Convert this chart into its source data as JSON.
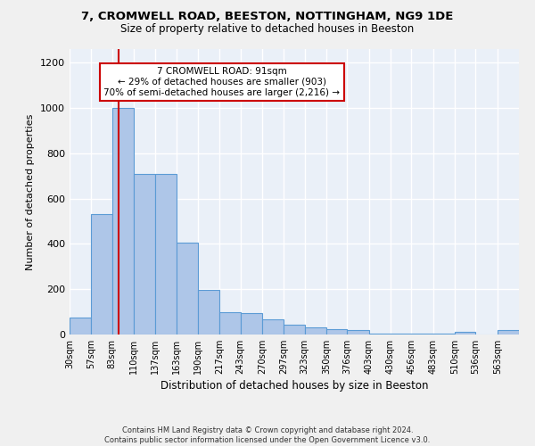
{
  "title_line1": "7, CROMWELL ROAD, BEESTON, NOTTINGHAM, NG9 1DE",
  "title_line2": "Size of property relative to detached houses in Beeston",
  "xlabel": "Distribution of detached houses by size in Beeston",
  "ylabel": "Number of detached properties",
  "bar_color": "#aec6e8",
  "bar_edge_color": "#5b9bd5",
  "background_color": "#eaf0f8",
  "grid_color": "#ffffff",
  "annotation_text": "7 CROMWELL ROAD: 91sqm\n← 29% of detached houses are smaller (903)\n70% of semi-detached houses are larger (2,216) →",
  "vline_x": 91,
  "vline_color": "#cc0000",
  "categories": [
    "30sqm",
    "57sqm",
    "83sqm",
    "110sqm",
    "137sqm",
    "163sqm",
    "190sqm",
    "217sqm",
    "243sqm",
    "270sqm",
    "297sqm",
    "323sqm",
    "350sqm",
    "376sqm",
    "403sqm",
    "430sqm",
    "456sqm",
    "483sqm",
    "510sqm",
    "536sqm",
    "563sqm"
  ],
  "bin_edges": [
    30,
    57,
    83,
    110,
    137,
    163,
    190,
    217,
    243,
    270,
    297,
    323,
    350,
    376,
    403,
    430,
    456,
    483,
    510,
    536,
    563,
    590
  ],
  "values": [
    75,
    530,
    1000,
    710,
    710,
    405,
    198,
    100,
    93,
    65,
    42,
    32,
    22,
    20,
    5,
    5,
    5,
    5,
    10,
    0,
    18
  ],
  "ylim": [
    0,
    1260
  ],
  "yticks": [
    0,
    200,
    400,
    600,
    800,
    1000,
    1200
  ],
  "footnote": "Contains HM Land Registry data © Crown copyright and database right 2024.\nContains public sector information licensed under the Open Government Licence v3.0.",
  "annotation_box_color": "#ffffff",
  "annotation_box_edge_color": "#cc0000",
  "fig_bg": "#f0f0f0"
}
